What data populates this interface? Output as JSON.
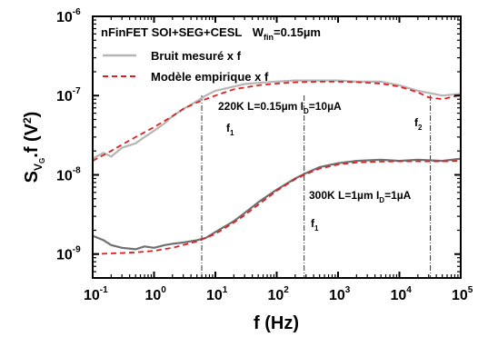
{
  "chart_data": {
    "type": "line",
    "title": "nFinFET SOI+SEG+CESL",
    "title_width_main": "W",
    "title_width_sub": "fin",
    "title_width_value": "=0.15µm",
    "xlabel": "f (Hz)",
    "ylabel_main": "S",
    "ylabel_sub1": "V",
    "ylabel_sub2": "G",
    "ylabel_rest": ".f (V",
    "ylabel_sup": "2",
    "ylabel_end": ")",
    "x_scale": "log",
    "y_scale": "log",
    "xlim": [
      0.1,
      100000
    ],
    "ylim": [
      5e-10,
      1e-06
    ],
    "x_ticks": [
      {
        "base": "10",
        "exp": "-1"
      },
      {
        "base": "10",
        "exp": "0"
      },
      {
        "base": "10",
        "exp": "1"
      },
      {
        "base": "10",
        "exp": "2"
      },
      {
        "base": "10",
        "exp": "3"
      },
      {
        "base": "10",
        "exp": "4"
      },
      {
        "base": "10",
        "exp": "5"
      }
    ],
    "y_ticks": [
      {
        "base": "10",
        "exp": "-9"
      },
      {
        "base": "10",
        "exp": "-8"
      },
      {
        "base": "10",
        "exp": "-7"
      },
      {
        "base": "10",
        "exp": "-6"
      }
    ],
    "legend_position": "top-left",
    "series": [
      {
        "name": "Bruit mesuré x f",
        "style": "solid",
        "color": "#b5b5b5",
        "x": [
          0.1,
          0.15,
          0.2,
          0.3,
          0.5,
          0.7,
          1,
          1.5,
          2,
          3,
          5,
          7,
          10,
          20,
          30,
          50,
          100,
          200,
          500,
          1000,
          2000,
          5000,
          10000,
          20000,
          50000,
          100000
        ],
        "y": [
          1.6e-08,
          1.9e-08,
          1.7e-08,
          2.2e-08,
          2.5e-08,
          3e-08,
          3.6e-08,
          4.5e-08,
          5.5e-08,
          6.8e-08,
          8.5e-08,
          1e-07,
          1.15e-07,
          1.3e-07,
          1.4e-07,
          1.45e-07,
          1.5e-07,
          1.55e-07,
          1.55e-07,
          1.55e-07,
          1.5e-07,
          1.5e-07,
          1.35e-07,
          1.15e-07,
          1e-07,
          1.05e-07
        ]
      },
      {
        "name": "Modèle empirique x f",
        "style": "dashed",
        "color": "#e02020",
        "x": [
          0.1,
          0.2,
          0.3,
          0.5,
          1,
          2,
          3,
          5,
          10,
          20,
          50,
          100,
          200,
          500,
          1000,
          2000,
          5000,
          10000,
          20000,
          30000,
          50000,
          100000
        ],
        "y": [
          1.5e-08,
          2e-08,
          2.4e-08,
          3e-08,
          4e-08,
          5.5e-08,
          6.8e-08,
          8.2e-08,
          1e-07,
          1.2e-07,
          1.35e-07,
          1.42e-07,
          1.47e-07,
          1.5e-07,
          1.5e-07,
          1.48e-07,
          1.42e-07,
          1.3e-07,
          1.1e-07,
          9.5e-08,
          9e-08,
          1.02e-07
        ]
      },
      {
        "name": "",
        "style": "solid",
        "color": "#707070",
        "x": [
          0.1,
          0.15,
          0.2,
          0.3,
          0.5,
          0.7,
          1,
          1.5,
          2,
          3,
          5,
          7,
          10,
          20,
          30,
          50,
          100,
          200,
          300,
          500,
          1000,
          2000,
          5000,
          10000,
          20000,
          50000,
          100000
        ],
        "y": [
          1.7e-09,
          1.5e-09,
          1.3e-09,
          1.2e-09,
          1.15e-09,
          1.25e-09,
          1.2e-09,
          1.3e-09,
          1.35e-09,
          1.4e-09,
          1.5e-09,
          1.6e-09,
          1.9e-09,
          2.6e-09,
          3.3e-09,
          4.5e-09,
          6.5e-09,
          9e-09,
          1.05e-08,
          1.25e-08,
          1.4e-08,
          1.5e-08,
          1.55e-08,
          1.5e-08,
          1.55e-08,
          1.5e-08,
          1.6e-08
        ]
      },
      {
        "name": "",
        "style": "dashed",
        "color": "#e02020",
        "x": [
          0.1,
          0.2,
          0.5,
          1,
          2,
          3,
          5,
          7,
          10,
          20,
          30,
          50,
          100,
          200,
          300,
          500,
          1000,
          2000,
          5000,
          10000,
          20000,
          50000,
          100000
        ],
        "y": [
          1e-09,
          1.02e-09,
          1.05e-09,
          1.1e-09,
          1.2e-09,
          1.3e-09,
          1.45e-09,
          1.6e-09,
          1.8e-09,
          2.5e-09,
          3.1e-09,
          4.2e-09,
          6.3e-09,
          8.8e-09,
          1.02e-08,
          1.2e-08,
          1.35e-08,
          1.43e-08,
          1.47e-08,
          1.48e-08,
          1.48e-08,
          1.48e-08,
          1.5e-08
        ]
      }
    ],
    "vertical_markers": [
      6,
      280,
      32000
    ],
    "annotations": [
      {
        "text": "220K  L=0.15µm  I",
        "sub": "D",
        "rest": "=10µA"
      },
      {
        "text": "300K  L=1µm  I",
        "sub": "D",
        "rest": "=1µA"
      },
      {
        "text": "f",
        "sub": "1",
        "rest": ""
      },
      {
        "text": "f",
        "sub": "1",
        "rest": ""
      },
      {
        "text": "f",
        "sub": "2",
        "rest": ""
      }
    ]
  }
}
